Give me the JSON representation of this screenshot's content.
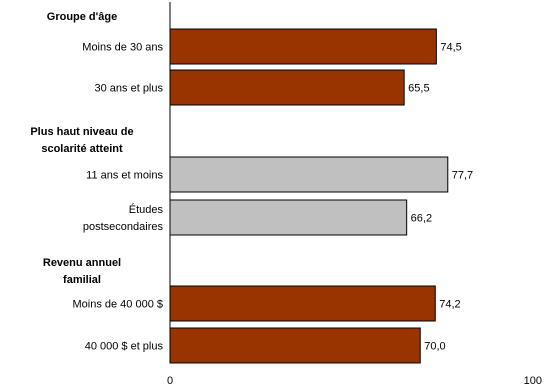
{
  "chart_data": {
    "type": "bar",
    "orientation": "horizontal",
    "title": "",
    "xlabel": "",
    "ylabel": "",
    "xlim": [
      0,
      100
    ],
    "x_ticks": [
      "0",
      "100"
    ],
    "grid": false,
    "groups": [
      {
        "label": [
          "Groupe d'âge"
        ],
        "color": "#993300",
        "bars": [
          {
            "category": [
              "Moins de 30 ans"
            ],
            "value": 74.5,
            "value_label": "74,5"
          },
          {
            "category": [
              "30 ans et plus"
            ],
            "value": 65.5,
            "value_label": "65,5"
          }
        ]
      },
      {
        "label": [
          "Plus haut niveau de",
          "scolarité atteint"
        ],
        "color": "#c0c0c0",
        "bars": [
          {
            "category": [
              "11  ans et moins"
            ],
            "value": 77.7,
            "value_label": "77,7"
          },
          {
            "category": [
              "Études",
              "postsecondaires"
            ],
            "value": 66.2,
            "value_label": "66,2"
          }
        ]
      },
      {
        "label": [
          "Revenu annuel",
          "familial"
        ],
        "color": "#993300",
        "bars": [
          {
            "category": [
              "Moins de 40 000 $"
            ],
            "value": 74.2,
            "value_label": "74,2"
          },
          {
            "category": [
              "40 000 $ et plus"
            ],
            "value": 70.0,
            "value_label": "70,0"
          }
        ]
      }
    ]
  }
}
